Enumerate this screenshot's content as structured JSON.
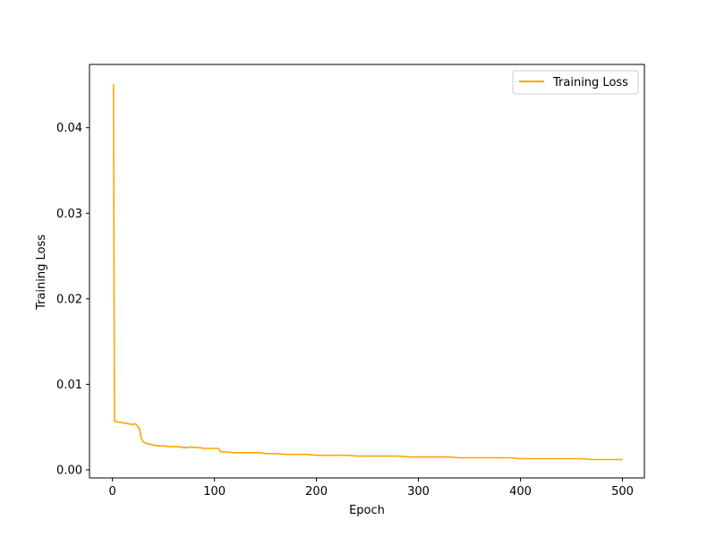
{
  "chart_data": {
    "type": "line",
    "title": "",
    "xlabel": "Epoch",
    "ylabel": "Training Loss",
    "xlim": [
      -22.5,
      521.5
    ],
    "ylim": [
      -0.00095,
      0.0474
    ],
    "xticks": [
      0,
      100,
      200,
      300,
      400,
      500
    ],
    "yticks": [
      0.0,
      0.01,
      0.02,
      0.03,
      0.04
    ],
    "xtick_labels": [
      "0",
      "100",
      "200",
      "300",
      "400",
      "500"
    ],
    "ytick_labels": [
      "0.00",
      "0.01",
      "0.02",
      "0.03",
      "0.04"
    ],
    "grid": false,
    "legend": {
      "position": "top-right",
      "entries": [
        "Training Loss"
      ]
    },
    "series": [
      {
        "name": "Training Loss",
        "color": "#ffa500",
        "x": [
          1,
          2,
          5,
          10,
          15,
          20,
          22,
          24,
          26,
          27,
          28,
          30,
          33,
          36,
          40,
          45,
          50,
          55,
          60,
          65,
          70,
          75,
          78,
          80,
          85,
          90,
          95,
          100,
          104,
          106,
          108,
          110,
          120,
          130,
          140,
          145,
          150,
          160,
          170,
          180,
          190,
          200,
          210,
          220,
          230,
          240,
          250,
          260,
          270,
          280,
          290,
          300,
          310,
          320,
          330,
          340,
          350,
          360,
          370,
          380,
          390,
          400,
          410,
          420,
          430,
          440,
          450,
          460,
          470,
          480,
          490,
          500
        ],
        "y": [
          0.0451,
          0.0057,
          0.0056,
          0.0055,
          0.0054,
          0.0053,
          0.0054,
          0.0052,
          0.0049,
          0.0045,
          0.0038,
          0.0033,
          0.0031,
          0.003,
          0.0029,
          0.0028,
          0.0028,
          0.0027,
          0.0027,
          0.0027,
          0.0026,
          0.0026,
          0.0027,
          0.0026,
          0.0026,
          0.0025,
          0.0025,
          0.0025,
          0.0025,
          0.0021,
          0.0021,
          0.0021,
          0.002,
          0.002,
          0.002,
          0.002,
          0.0019,
          0.0019,
          0.0018,
          0.0018,
          0.0018,
          0.0017,
          0.0017,
          0.0017,
          0.0017,
          0.0016,
          0.0016,
          0.0016,
          0.0016,
          0.0016,
          0.0015,
          0.0015,
          0.0015,
          0.0015,
          0.0015,
          0.0014,
          0.0014,
          0.0014,
          0.0014,
          0.0014,
          0.0014,
          0.0013,
          0.0013,
          0.0013,
          0.0013,
          0.0013,
          0.0013,
          0.0013,
          0.0012,
          0.0012,
          0.0012,
          0.0012
        ]
      }
    ]
  }
}
